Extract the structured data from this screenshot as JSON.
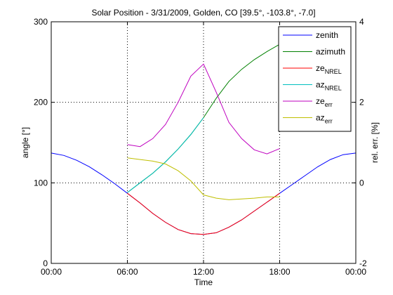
{
  "chart_data": {
    "type": "line",
    "title": "Solar Position - 3/31/2009, Golden, CO [39.5°, -103.8°, -7.0]",
    "xlabel": "Time",
    "ylabel": "angle [°]",
    "ylabel_right": "rel. err. [%]",
    "x_ticks": [
      "00:00",
      "06:00",
      "12:00",
      "18:00",
      "00:00"
    ],
    "x_tick_hours": [
      0,
      6,
      12,
      18,
      24
    ],
    "xlim": [
      0,
      24
    ],
    "ylim": [
      0,
      300
    ],
    "y_ticks": [
      "0",
      "100",
      "200",
      "300"
    ],
    "y_tick_values": [
      0,
      100,
      200,
      300
    ],
    "ylim_right": [
      -2,
      4
    ],
    "y_right_ticks": [
      "-2",
      "0",
      "2",
      "4"
    ],
    "y_right_tick_values": [
      -2,
      0,
      2,
      4
    ],
    "grid": "dotted, at x ticks and y ticks",
    "legend_position": "top-right",
    "series": [
      {
        "name": "zenith",
        "legend_main": "zenith",
        "legend_sub": "",
        "axis": "left",
        "color": "#0000ff",
        "x": [
          0,
          1,
          2,
          3,
          4,
          5,
          6,
          7,
          8,
          9,
          10,
          11,
          12,
          13,
          14,
          15,
          16,
          17,
          18,
          19,
          20,
          21,
          22,
          23,
          24
        ],
        "y": [
          137,
          134,
          128,
          120,
          110,
          99,
          87,
          75,
          62,
          51,
          42,
          37,
          36,
          38,
          45,
          54,
          65,
          76,
          87,
          98,
          109,
          120,
          129,
          135,
          137
        ]
      },
      {
        "name": "azimuth",
        "legend_main": "azimuth",
        "legend_sub": "",
        "axis": "left",
        "color": "#008000",
        "x": [
          6,
          7,
          8,
          9,
          10,
          11,
          12,
          13,
          14,
          15,
          16,
          17,
          18
        ],
        "y": [
          88,
          100,
          112,
          126,
          142,
          160,
          181,
          205,
          226,
          241,
          253,
          263,
          272
        ]
      },
      {
        "name": "zeNREL",
        "legend_main": "ze",
        "legend_sub": "NREL",
        "axis": "left",
        "color": "#ff0000",
        "x": [
          6,
          7,
          8,
          9,
          10,
          11,
          12,
          13,
          14,
          15,
          16,
          17,
          18
        ],
        "y": [
          87,
          75,
          62,
          51,
          42,
          37,
          36,
          38,
          45,
          54,
          65,
          76,
          87
        ]
      },
      {
        "name": "azNREL",
        "legend_main": "az",
        "legend_sub": "NREL",
        "axis": "left",
        "color": "#00bfbf",
        "x": [
          6,
          7,
          8,
          9,
          10,
          11,
          12
        ],
        "y": [
          88,
          100,
          112,
          126,
          142,
          160,
          181
        ]
      },
      {
        "name": "zeerr",
        "legend_main": "ze",
        "legend_sub": "err",
        "axis": "right",
        "color": "#bf00bf",
        "x": [
          6,
          7,
          8,
          9,
          10,
          11,
          12,
          13,
          14,
          15,
          16,
          17,
          18
        ],
        "y": [
          0.95,
          0.9,
          1.1,
          1.45,
          2.0,
          2.65,
          2.95,
          2.25,
          1.5,
          1.1,
          0.82,
          0.72,
          0.85
        ]
      },
      {
        "name": "azerr",
        "legend_main": "az",
        "legend_sub": "err",
        "axis": "right",
        "color": "#bfbf00",
        "x": [
          6,
          7,
          8,
          9,
          10,
          11,
          12,
          13,
          14,
          15,
          16,
          17,
          18
        ],
        "y": [
          0.62,
          0.58,
          0.54,
          0.47,
          0.3,
          0.05,
          -0.3,
          -0.38,
          -0.42,
          -0.4,
          -0.38,
          -0.35,
          -0.35
        ]
      }
    ]
  }
}
